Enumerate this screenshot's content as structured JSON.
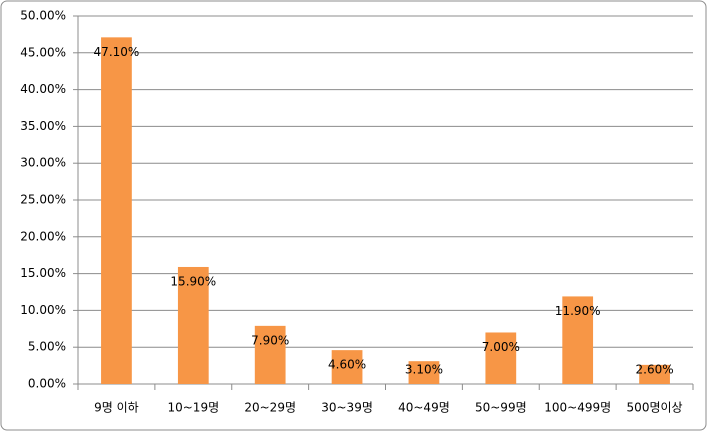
{
  "chart_data": {
    "type": "bar",
    "categories": [
      "9명 이하",
      "10~19명",
      "20~29명",
      "30~39명",
      "40~49명",
      "50~99명",
      "100~499명",
      "500명이상"
    ],
    "values": [
      47.1,
      15.9,
      7.9,
      4.6,
      3.1,
      7.0,
      11.9,
      2.6
    ],
    "value_labels": [
      "47.10%",
      "15.90%",
      "7.90%",
      "4.60%",
      "3.10%",
      "7.00%",
      "11.90%",
      "2.60%"
    ],
    "color": "#f79646",
    "ylim": [
      0,
      50
    ],
    "yticks": [
      {
        "value": 0,
        "label": "0.00%"
      },
      {
        "value": 5,
        "label": "5.00%"
      },
      {
        "value": 10,
        "label": "10.00%"
      },
      {
        "value": 15,
        "label": "15.00%"
      },
      {
        "value": 20,
        "label": "20.00%"
      },
      {
        "value": 25,
        "label": "25.00%"
      },
      {
        "value": 30,
        "label": "30.00%"
      },
      {
        "value": 35,
        "label": "35.00%"
      },
      {
        "value": 40,
        "label": "40.00%"
      },
      {
        "value": 45,
        "label": "45.00%"
      },
      {
        "value": 50,
        "label": "50.00%"
      }
    ],
    "grid": true
  }
}
